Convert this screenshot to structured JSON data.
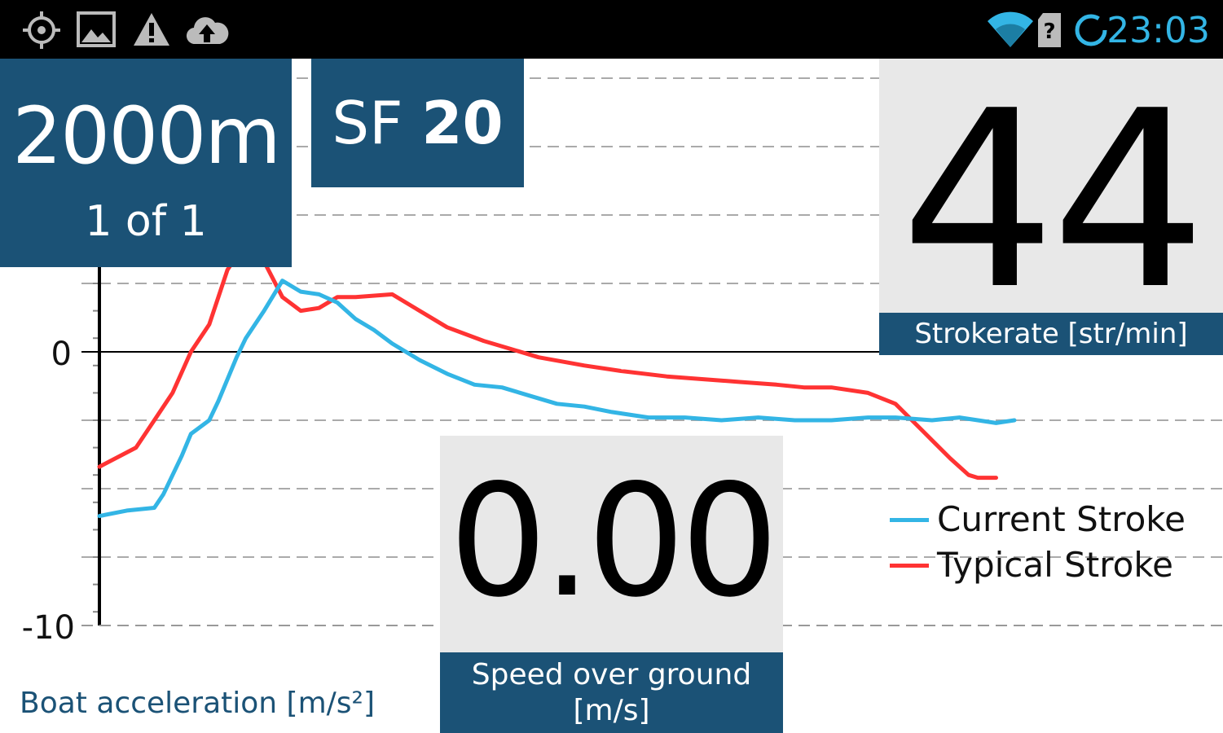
{
  "status_bar": {
    "time": "23:03",
    "left_icons": [
      "gps-icon",
      "image-icon",
      "warning-icon",
      "cloud-upload-icon"
    ],
    "right_icons": [
      "wifi-icon",
      "no-sim-icon",
      "sync-icon"
    ],
    "accent": "#33b5e5"
  },
  "distance": {
    "value": "2000m",
    "piece": "1 of 1"
  },
  "stroke_factor": {
    "prefix": "SF",
    "value": "20"
  },
  "strokerate": {
    "value": "44",
    "label": "Strokerate [str/min]"
  },
  "speed": {
    "value": "0.00",
    "label_line1": "Speed over ground",
    "label_line2": "[m/s]"
  },
  "acceleration_label": "Boat acceleration [m/s²]",
  "colors": {
    "panel": "#1b5276",
    "current": "#33b5e5",
    "typical": "#ff3333"
  },
  "chart_data": {
    "type": "line",
    "ylabel": "Boat acceleration [m/s²]",
    "yticks": [
      0,
      -10
    ],
    "ylim": [
      -10,
      3
    ],
    "xlim": [
      0,
      100
    ],
    "legend_position": "right",
    "series": [
      {
        "name": "Current Stroke",
        "color": "#33b5e5",
        "x": [
          0,
          3,
          6,
          7,
          9,
          10,
          12,
          13,
          15,
          16,
          18,
          20,
          22,
          24,
          26,
          28,
          30,
          32,
          35,
          38,
          41,
          44,
          47,
          50,
          53,
          56,
          60,
          64,
          68,
          72,
          76,
          80,
          84,
          87,
          91,
          94,
          98,
          100
        ],
        "y": [
          -6.0,
          -5.8,
          -5.7,
          -5.2,
          -3.8,
          -3.0,
          -2.5,
          -1.8,
          -0.2,
          0.5,
          1.5,
          2.6,
          2.2,
          2.1,
          1.8,
          1.2,
          0.8,
          0.3,
          -0.3,
          -0.8,
          -1.2,
          -1.3,
          -1.6,
          -1.9,
          -2.0,
          -2.2,
          -2.4,
          -2.4,
          -2.5,
          -2.4,
          -2.5,
          -2.5,
          -2.4,
          -2.4,
          -2.5,
          -2.4,
          -2.6,
          -2.5
        ]
      },
      {
        "name": "Typical Stroke",
        "color": "#ff3333",
        "x": [
          0,
          4,
          6,
          8,
          10,
          12,
          13,
          14,
          15,
          17,
          18,
          20,
          22,
          24,
          26,
          28,
          32,
          35,
          38,
          42,
          45,
          48,
          53,
          57,
          62,
          66,
          70,
          74,
          77,
          80,
          84,
          87,
          90,
          93,
          95,
          96,
          98
        ],
        "y": [
          -4.2,
          -3.5,
          -2.5,
          -1.5,
          0.0,
          1.0,
          2.0,
          3.0,
          3.5,
          3.4,
          3.3,
          2.0,
          1.5,
          1.6,
          2.0,
          2.0,
          2.1,
          1.5,
          0.9,
          0.4,
          0.1,
          -0.2,
          -0.5,
          -0.7,
          -0.9,
          -1.0,
          -1.1,
          -1.2,
          -1.3,
          -1.3,
          -1.5,
          -1.9,
          -2.9,
          -3.9,
          -4.5,
          -4.6,
          -4.6
        ]
      }
    ]
  }
}
